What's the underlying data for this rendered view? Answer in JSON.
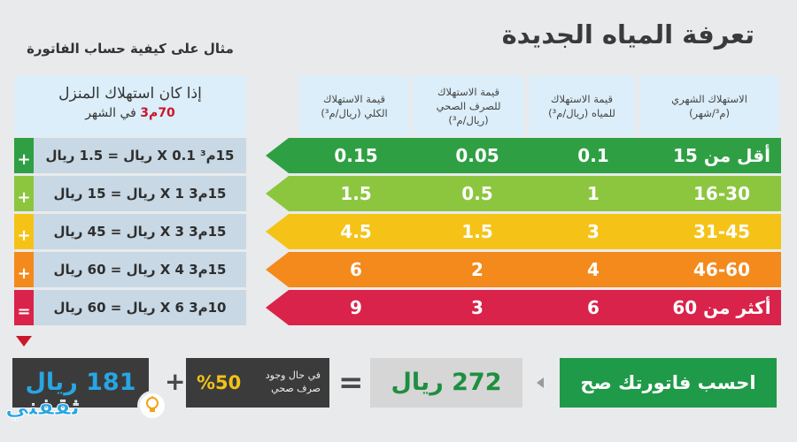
{
  "title": "تعرفة المياه الجديدة",
  "example_title": "مثال على كيفية حساب الفاتورة",
  "tariff_headers": {
    "monthly_consumption": [
      "الاستهلاك الشهري",
      "(م³/شهر)"
    ],
    "water_value": [
      "قيمة الاستهلاك",
      "للمياه (ريال/م³)"
    ],
    "sewage_value": [
      "قيمة الاستهلاك",
      "للصرف الصحي",
      "(ريال/م³)"
    ],
    "total_value": [
      "قيمة الاستهلاك",
      "الكلي (ريال/م³)"
    ]
  },
  "tariff_rows": [
    {
      "range": "أقل من 15",
      "water": "0.1",
      "sewage": "0.05",
      "total": "0.15",
      "color": "#2ea043"
    },
    {
      "range": "16-30",
      "water": "1",
      "sewage": "0.5",
      "total": "1.5",
      "color": "#8cc63f"
    },
    {
      "range": "31-45",
      "water": "3",
      "sewage": "1.5",
      "total": "4.5",
      "color": "#f5c318"
    },
    {
      "range": "46-60",
      "water": "4",
      "sewage": "2",
      "total": "6",
      "color": "#f48a1c"
    },
    {
      "range": "أكثر من 60",
      "water": "6",
      "sewage": "3",
      "total": "9",
      "color": "#d9234a"
    }
  ],
  "example_header": {
    "line1": "إذا كان استهلاك المنزل",
    "line2_highlight": "70م3",
    "line2_rest": " في الشهر"
  },
  "example_rows": [
    {
      "qty": "15م³",
      "op": "X",
      "rate": "0.1 ريال",
      "eq": "=",
      "result": "1.5 ريال",
      "sign": "+",
      "color": "#2ea043"
    },
    {
      "qty": "15م3",
      "op": "X",
      "rate": "1 ريال",
      "eq": "=",
      "result": "15 ريال",
      "sign": "+",
      "color": "#8cc63f"
    },
    {
      "qty": "15م3",
      "op": "X",
      "rate": "3 ريال",
      "eq": "=",
      "result": "45 ريال",
      "sign": "+",
      "color": "#f5c318"
    },
    {
      "qty": "15م3",
      "op": "X",
      "rate": "4 ريال",
      "eq": "=",
      "result": "60 ريال",
      "sign": "+",
      "color": "#f48a1c"
    },
    {
      "qty": "10م3",
      "op": "X",
      "rate": "6 ريال",
      "eq": "=",
      "result": "60 ريال",
      "sign": "=",
      "color": "#d9234a"
    }
  ],
  "summary": {
    "calc_button": "احسب فاتورتك صح",
    "total_full": "272 ريال",
    "equals": "=",
    "discount_pct": "%50",
    "discount_note": [
      "في حال وجود",
      "صرف صحي"
    ],
    "plus": "+",
    "total_discounted": "181 ريال"
  },
  "watermark": "ثقفني",
  "colors": {
    "header_bg": "#dbeef9",
    "example_bg": "#c8d8e4",
    "accent_red": "#c9172b",
    "button_green": "#1e9a48",
    "dark_box": "#3b3b3b"
  }
}
